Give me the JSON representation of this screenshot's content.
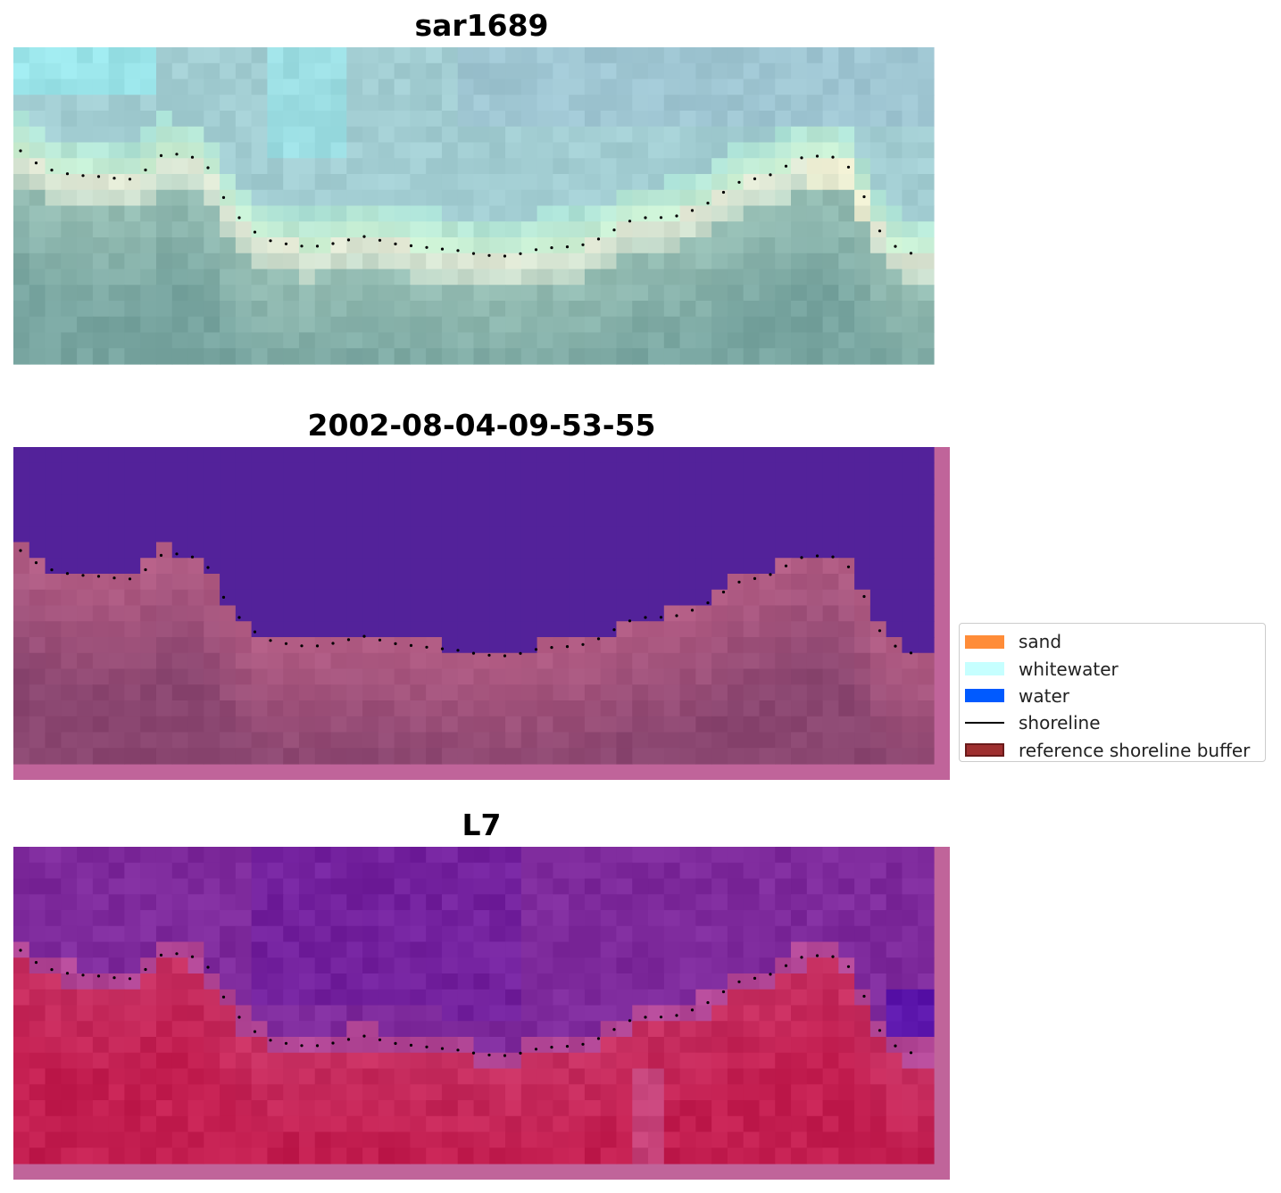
{
  "panels": [
    {
      "title": "sar1689",
      "kind": "rgb-image"
    },
    {
      "title": "2002-08-04-09-53-55",
      "kind": "classified-image"
    },
    {
      "title": "L7",
      "kind": "mndwi-image"
    }
  ],
  "legend": {
    "placement": "center-right",
    "items": [
      {
        "label": "sand",
        "color": "#ff8c38",
        "type": "patch"
      },
      {
        "label": "whitewater",
        "color": "#c6ffff",
        "type": "patch"
      },
      {
        "label": "water",
        "color": "#005aff",
        "type": "patch"
      },
      {
        "label": "shoreline",
        "color": "#000000",
        "type": "line"
      },
      {
        "label": "reference shoreline buffer",
        "color": "#9e2f2f",
        "type": "patch-outlined"
      }
    ]
  },
  "colors": {
    "overlay_buffer": "#c0649a",
    "class_water": "#53229a",
    "class_land": "#a8557f",
    "mndwi_water": "#7e2a9c",
    "mndwi_land": "#c8285a",
    "shoreline_points": "#000000"
  }
}
